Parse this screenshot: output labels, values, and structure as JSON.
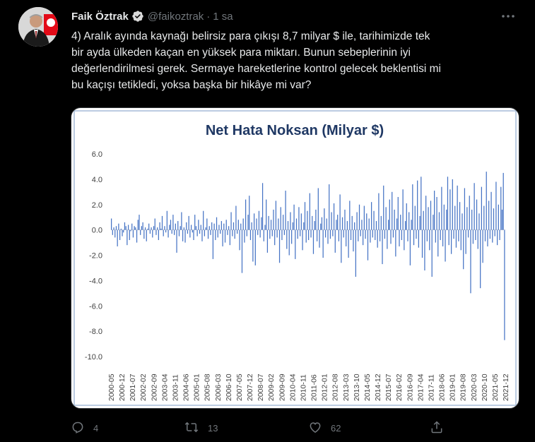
{
  "tweet": {
    "author_name": "Faik Öztrak",
    "handle": "@faikoztrak",
    "separator": "·",
    "time": "1 sa",
    "text_lines": [
      "4) Aralık ayında kaynağı belirsiz para çıkışı 8,7 milyar $ ile, tarihimizde tek",
      "bir ayda ülkeden kaçan en yüksek para miktarı. Bunun sebeplerinin iyi",
      "değerlendirilmesi gerek. Sermaye hareketlerine kontrol gelecek beklentisi mi",
      "bu kaçışı tetikledi, yoksa başka bir hikâye mi var?"
    ]
  },
  "actions": {
    "reply_count": "4",
    "retweet_count": "13",
    "like_count": "62"
  },
  "icons": {
    "verified": "verified-badge-icon",
    "more": "more-icon",
    "reply": "reply-icon",
    "retweet": "retweet-icon",
    "like": "like-icon",
    "share": "share-icon"
  },
  "colors": {
    "background": "#000000",
    "text": "#e7e9ea",
    "muted": "#71767b",
    "bar": "#4472c4",
    "title": "#1f3864",
    "chart_border": "#a6bcd8"
  },
  "chart_data": {
    "type": "bar",
    "title": "Net Hata Noksan (Milyar $)",
    "ylim": [
      -10,
      6
    ],
    "yticks": [
      "6.0",
      "4.0",
      "2.0",
      "0.0",
      "-2.0",
      "-4.0",
      "-6.0",
      "-8.0",
      "-10.0"
    ],
    "xtick_labels": [
      "2000-05",
      "2000-12",
      "2001-07",
      "2002-02",
      "2002-09",
      "2003-04",
      "2003-11",
      "2004-06",
      "2005-01",
      "2005-08",
      "2006-03",
      "2006-10",
      "2007-05",
      "2007-12",
      "2008-07",
      "2009-02",
      "2009-09",
      "2010-04",
      "2010-11",
      "2011-06",
      "2012-01",
      "2012-08",
      "2013-03",
      "2013-10",
      "2014-05",
      "2014-12",
      "2015-07",
      "2016-02",
      "2016-09",
      "2017-04",
      "2017-11",
      "2018-06",
      "2019-01",
      "2019-08",
      "2020-03",
      "2020-10",
      "2021-05",
      "2021-12"
    ],
    "grid": false,
    "legend": "none",
    "series": [
      {
        "values": [
          0.9,
          -0.4,
          0.2,
          -0.6,
          0.3,
          -1.3,
          0.5,
          -0.8,
          0.1,
          -0.5,
          -0.2,
          0.6,
          0.3,
          -1.2,
          0.4,
          -0.8,
          -0.1,
          0.5,
          -0.6,
          0.3,
          0.2,
          -1.0,
          0.8,
          1.2,
          -0.4,
          0.3,
          0.6,
          -0.7,
          0.2,
          -0.9,
          0.1,
          0.5,
          -0.3,
          0.2,
          -0.6,
          0.3,
          0.9,
          -0.4,
          0.2,
          -0.8,
          0.6,
          0.1,
          1.1,
          -0.5,
          0.3,
          -0.2,
          1.5,
          -0.6,
          0.4,
          0.8,
          -0.3,
          1.2,
          -0.4,
          0.5,
          -1.8,
          0.7,
          -0.5,
          0.3,
          1.4,
          -0.9,
          0.2,
          -1.0,
          0.6,
          -0.3,
          1.1,
          -0.6,
          0.4,
          -0.2,
          -0.8,
          1.2,
          0.3,
          -0.5,
          0.8,
          -0.3,
          0.4,
          -0.9,
          1.5,
          -0.5,
          0.2,
          0.9,
          -0.7,
          0.3,
          -0.4,
          0.6,
          -2.3,
          0.5,
          -0.8,
          1.0,
          -0.6,
          0.4,
          -0.3,
          0.7,
          -1.3,
          0.5,
          -1.0,
          0.8,
          -0.4,
          0.3,
          -1.2,
          1.4,
          -0.5,
          0.6,
          -0.7,
          1.9,
          -0.3,
          0.8,
          -1.6,
          0.5,
          -3.4,
          0.9,
          -1.0,
          2.4,
          -0.5,
          1.2,
          2.7,
          -0.8,
          0.6,
          -2.5,
          1.3,
          -2.8,
          0.9,
          -0.4,
          1.5,
          -0.6,
          1.0,
          3.7,
          -0.9,
          0.4,
          2.4,
          -1.8,
          1.1,
          -0.7,
          0.8,
          -0.5,
          1.6,
          -1.2,
          2.3,
          -0.6,
          0.9,
          -2.6,
          1.8,
          -0.8,
          1.2,
          -0.4,
          3.1,
          -1.5,
          0.7,
          -2.0,
          1.4,
          -1.1,
          0.6,
          2.0,
          -2.3,
          0.9,
          -0.7,
          1.8,
          -0.5,
          1.3,
          -1.6,
          0.6,
          2.2,
          -1.0,
          1.5,
          -0.8,
          2.9,
          -0.6,
          1.1,
          -1.9,
          0.7,
          1.6,
          -0.9,
          3.3,
          -1.4,
          0.5,
          1.0,
          -2.2,
          1.7,
          -0.6,
          0.9,
          -1.1,
          3.6,
          -0.7,
          1.4,
          -0.5,
          2.1,
          -1.8,
          0.8,
          1.2,
          -0.9,
          2.8,
          -2.6,
          1.0,
          -0.6,
          1.6,
          -1.3,
          0.7,
          -2.2,
          2.3,
          -0.8,
          1.1,
          -1.7,
          0.6,
          -3.7,
          1.4,
          -0.9,
          2.0,
          -0.5,
          0.8,
          -1.2,
          1.9,
          -0.7,
          1.3,
          -2.4,
          0.9,
          -1.0,
          2.2,
          -0.6,
          1.5,
          -0.8,
          0.7,
          -1.4,
          2.9,
          -0.9,
          1.1,
          -2.7,
          3.5,
          -0.7,
          1.8,
          -1.5,
          0.8,
          2.4,
          -1.1,
          3.0,
          -0.6,
          1.6,
          -2.1,
          0.9,
          2.6,
          -1.3,
          1.2,
          -0.8,
          3.2,
          -1.6,
          0.7,
          2.1,
          -0.9,
          1.4,
          -2.8,
          0.8,
          3.6,
          -1.2,
          1.9,
          -0.7,
          3.9,
          -1.4,
          1.1,
          4.2,
          -2.2,
          1.5,
          -3.2,
          2.7,
          -0.9,
          1.8,
          -1.6,
          2.3,
          -3.7,
          1.2,
          3.1,
          -1.0,
          2.6,
          -2.1,
          1.4,
          -0.8,
          3.4,
          -1.3,
          2.0,
          -2.5,
          1.6,
          4.2,
          -1.2,
          3.2,
          -1.9,
          4.0,
          -0.7,
          1.9,
          -1.4,
          3.5,
          -0.9,
          2.2,
          -1.6,
          1.3,
          -3.1,
          3.3,
          -1.9,
          1.8,
          -0.6,
          2.7,
          -5.0,
          1.6,
          -1.1,
          3.7,
          -0.8,
          2.4,
          -1.5,
          1.3,
          -4.6,
          3.4,
          -2.6,
          1.9,
          -0.9,
          4.6,
          -1.3,
          2.3,
          -0.7,
          3.0,
          -1.0,
          1.7,
          -0.5,
          3.8,
          -1.2,
          2.0,
          -0.8,
          3.4,
          1.6,
          4.5,
          -8.7
        ]
      }
    ]
  }
}
